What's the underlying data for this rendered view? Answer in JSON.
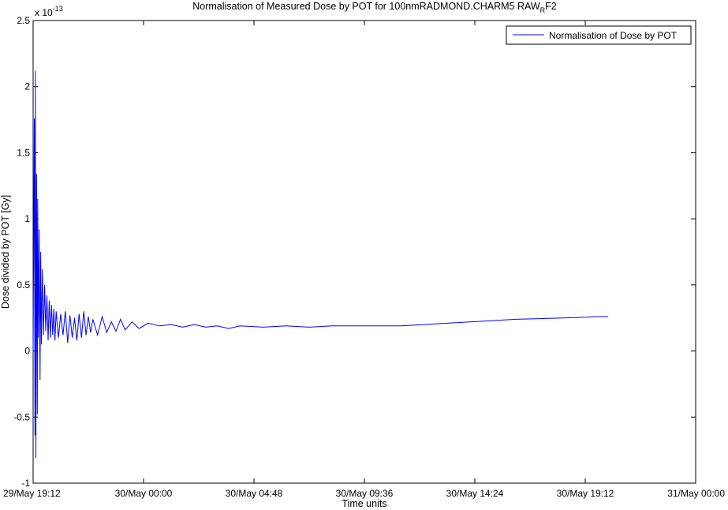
{
  "chart_data": {
    "type": "line",
    "title": "Normalisation of Measured Dose by POT for 100nmRADMOND.CHARM5 RAW",
    "title_subscript": "R",
    "title_suffix": "F2",
    "xlabel": "Time units",
    "ylabel": "Dose divided by POT [Gy]",
    "y_exponent_label": "x 10",
    "y_exponent_power": "-13",
    "ylim": [
      -1e-13,
      2.5e-13
    ],
    "xlim": [
      "29/May 19:12",
      "31/May 00:00"
    ],
    "xlim_hours": [
      0,
      28.8
    ],
    "x_ticks": [
      {
        "hours": 0,
        "label": "29/May 19:12"
      },
      {
        "hours": 4.8,
        "label": "30/May 00:00"
      },
      {
        "hours": 9.6,
        "label": "30/May 04:48"
      },
      {
        "hours": 14.4,
        "label": "30/May 09:36"
      },
      {
        "hours": 19.2,
        "label": "30/May 14:24"
      },
      {
        "hours": 24.0,
        "label": "30/May 19:12"
      },
      {
        "hours": 28.8,
        "label": "31/May 00:00"
      }
    ],
    "y_ticks": [
      {
        "value": 2.5,
        "label": "2.5"
      },
      {
        "value": 2.0,
        "label": "2"
      },
      {
        "value": 1.5,
        "label": "1.5"
      },
      {
        "value": 1.0,
        "label": "1"
      },
      {
        "value": 0.5,
        "label": "0.5"
      },
      {
        "value": 0.0,
        "label": "0"
      },
      {
        "value": -0.5,
        "label": "-0.5"
      },
      {
        "value": -1.0,
        "label": "-1"
      }
    ],
    "grid": false,
    "legend_position": "top-right",
    "series": [
      {
        "name": "Normalisation of Dose by POT",
        "color": "#0000ff",
        "x_hours": [
          0.0,
          0.05,
          0.08,
          0.1,
          0.12,
          0.15,
          0.18,
          0.2,
          0.23,
          0.26,
          0.3,
          0.33,
          0.36,
          0.4,
          0.45,
          0.5,
          0.55,
          0.6,
          0.65,
          0.7,
          0.75,
          0.8,
          0.85,
          0.9,
          0.95,
          1.0,
          1.1,
          1.2,
          1.3,
          1.4,
          1.5,
          1.6,
          1.7,
          1.8,
          1.9,
          2.0,
          2.1,
          2.2,
          2.3,
          2.4,
          2.5,
          2.6,
          2.8,
          3.0,
          3.2,
          3.4,
          3.6,
          3.8,
          4.0,
          4.3,
          4.6,
          5.0,
          5.5,
          6.0,
          6.5,
          7.0,
          7.5,
          8.0,
          8.5,
          9.0,
          10.0,
          11.0,
          12.0,
          13.0,
          14.0,
          15.0,
          16.0,
          17.0,
          18.0,
          19.0,
          20.0,
          21.0,
          22.0,
          23.0,
          24.0,
          24.5,
          25.0
        ],
        "values_e13": [
          0.0,
          1.76,
          -0.64,
          2.12,
          -0.81,
          1.34,
          -0.48,
          1.15,
          0.1,
          0.92,
          -0.22,
          0.75,
          0.05,
          0.62,
          0.12,
          0.5,
          0.15,
          0.42,
          0.08,
          0.38,
          0.1,
          0.35,
          0.12,
          0.32,
          0.08,
          0.3,
          0.1,
          0.28,
          0.12,
          0.3,
          0.06,
          0.27,
          0.1,
          0.25,
          0.08,
          0.28,
          0.1,
          0.3,
          0.12,
          0.26,
          0.14,
          0.24,
          0.12,
          0.26,
          0.14,
          0.22,
          0.15,
          0.24,
          0.16,
          0.22,
          0.17,
          0.21,
          0.19,
          0.2,
          0.18,
          0.2,
          0.18,
          0.19,
          0.17,
          0.19,
          0.18,
          0.19,
          0.18,
          0.19,
          0.19,
          0.19,
          0.19,
          0.2,
          0.21,
          0.22,
          0.23,
          0.24,
          0.245,
          0.25,
          0.255,
          0.26,
          0.26
        ]
      }
    ]
  }
}
